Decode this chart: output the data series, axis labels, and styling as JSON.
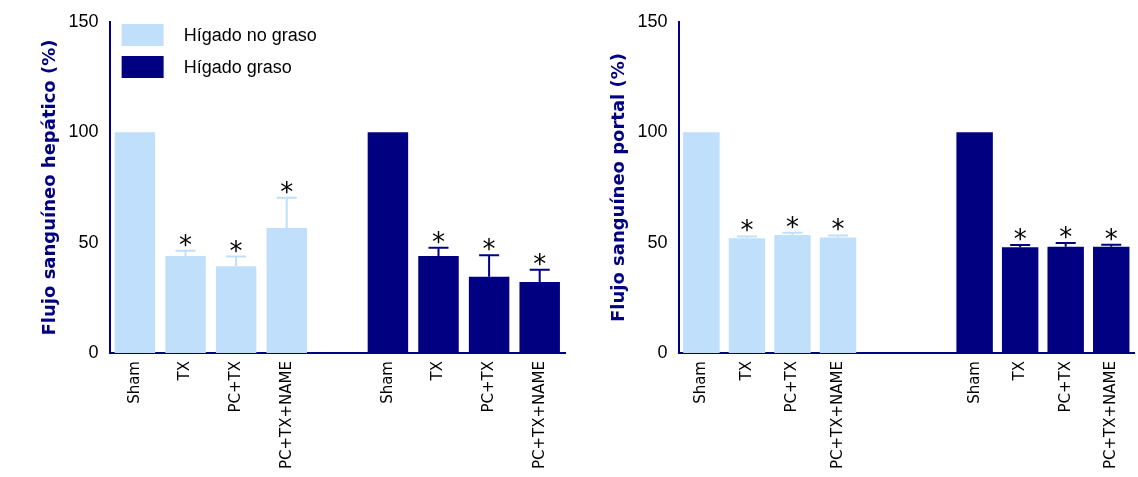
{
  "chart_data": [
    {
      "type": "bar",
      "ylabel": "Flujo sanguíneo hepático (%)",
      "categories": [
        "Sham",
        "TX",
        "PC+TX",
        "PC+TX+NAME",
        null,
        "Sham",
        "TX",
        "PC+TX",
        "PC+TX+NAME"
      ],
      "ylim": [
        0,
        150
      ],
      "yticks": [
        0,
        50,
        100,
        150
      ],
      "grid": false,
      "legend": "top left",
      "series": [
        {
          "name": "Hígado no graso",
          "color": "#c0dffb",
          "values": [
            100,
            44,
            39.3,
            56.6,
            null,
            null,
            null,
            null,
            null
          ],
          "errors": [
            null,
            [
              44,
              46.3
            ],
            [
              39.3,
              43.7
            ],
            [
              56.6,
              70.3
            ],
            null,
            null,
            null,
            null,
            null
          ],
          "value_labels": [
            null,
            "*",
            "*",
            "*",
            null,
            null,
            null,
            null,
            null
          ]
        },
        {
          "name": "Hígado graso",
          "color": "#000080",
          "values": [
            null,
            null,
            null,
            null,
            null,
            100,
            44,
            34.5,
            32.2
          ],
          "errors": [
            null,
            null,
            null,
            null,
            null,
            null,
            [
              44,
              47.7
            ],
            [
              34.5,
              44.3
            ],
            [
              32.2,
              37.7
            ]
          ],
          "value_labels": [
            null,
            null,
            null,
            null,
            null,
            null,
            "*",
            "*",
            "*"
          ]
        }
      ]
    },
    {
      "type": "bar",
      "ylabel": "Flujo sanguíneo portal (%)",
      "categories": [
        "Sham",
        "TX",
        "PC+TX",
        "PC+TX+NAME",
        null,
        null,
        "Sham",
        "TX",
        "PC+TX",
        "PC+TX+NAME"
      ],
      "ylim": [
        0,
        150
      ],
      "yticks": [
        0,
        50,
        100,
        150
      ],
      "grid": false,
      "legend": false,
      "series": [
        {
          "color": "#c0dffb",
          "values": [
            100,
            52,
            53.5,
            52.3,
            null,
            null,
            null,
            null,
            null,
            null
          ],
          "errors": [
            null,
            [
              52,
              52.8
            ],
            [
              53.5,
              54.5
            ],
            [
              52.3,
              53.3
            ],
            null,
            null,
            null,
            null,
            null,
            null
          ],
          "value_labels": [
            null,
            "*",
            "*",
            "*",
            null,
            null,
            null,
            null,
            null,
            null
          ]
        },
        {
          "color": "#000080",
          "values": [
            null,
            null,
            null,
            null,
            null,
            null,
            100,
            47.9,
            48.2,
            48.2
          ],
          "errors": [
            null,
            null,
            null,
            null,
            null,
            null,
            null,
            [
              47.9,
              48.9
            ],
            [
              48.2,
              49.9
            ],
            [
              48.2,
              49.1
            ]
          ],
          "value_labels": [
            null,
            null,
            null,
            null,
            null,
            null,
            null,
            "*",
            "*",
            "*"
          ]
        }
      ]
    }
  ]
}
